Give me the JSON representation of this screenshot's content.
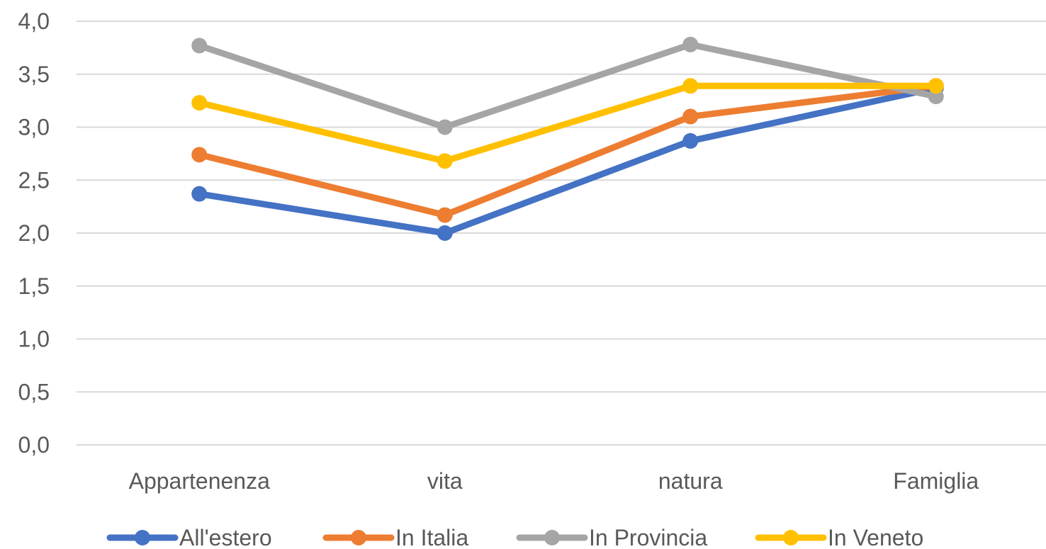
{
  "chart_data": {
    "type": "line",
    "title": "",
    "xlabel": "",
    "ylabel": "",
    "categories": [
      "Appartenenza",
      "vita",
      "natura",
      "Famiglia"
    ],
    "ylim": [
      0,
      4
    ],
    "ytick_step": 0.5,
    "ytick_labels": [
      "0,0",
      "0,5",
      "1,0",
      "1,5",
      "2,0",
      "2,5",
      "3,0",
      "3,5",
      "4,0"
    ],
    "grid": true,
    "legend_position": "bottom",
    "series": [
      {
        "name": "All'estero",
        "color": "#4472C4",
        "values": [
          2.37,
          2.0,
          2.87,
          3.37
        ]
      },
      {
        "name": "In Italia",
        "color": "#ED7D31",
        "values": [
          2.74,
          2.17,
          3.1,
          3.39
        ]
      },
      {
        "name": "In Provincia",
        "color": "#A5A5A5",
        "values": [
          3.77,
          3.0,
          3.78,
          3.29
        ]
      },
      {
        "name": "In Veneto",
        "color": "#FFC000",
        "values": [
          3.23,
          2.68,
          3.39,
          3.39
        ]
      }
    ]
  }
}
